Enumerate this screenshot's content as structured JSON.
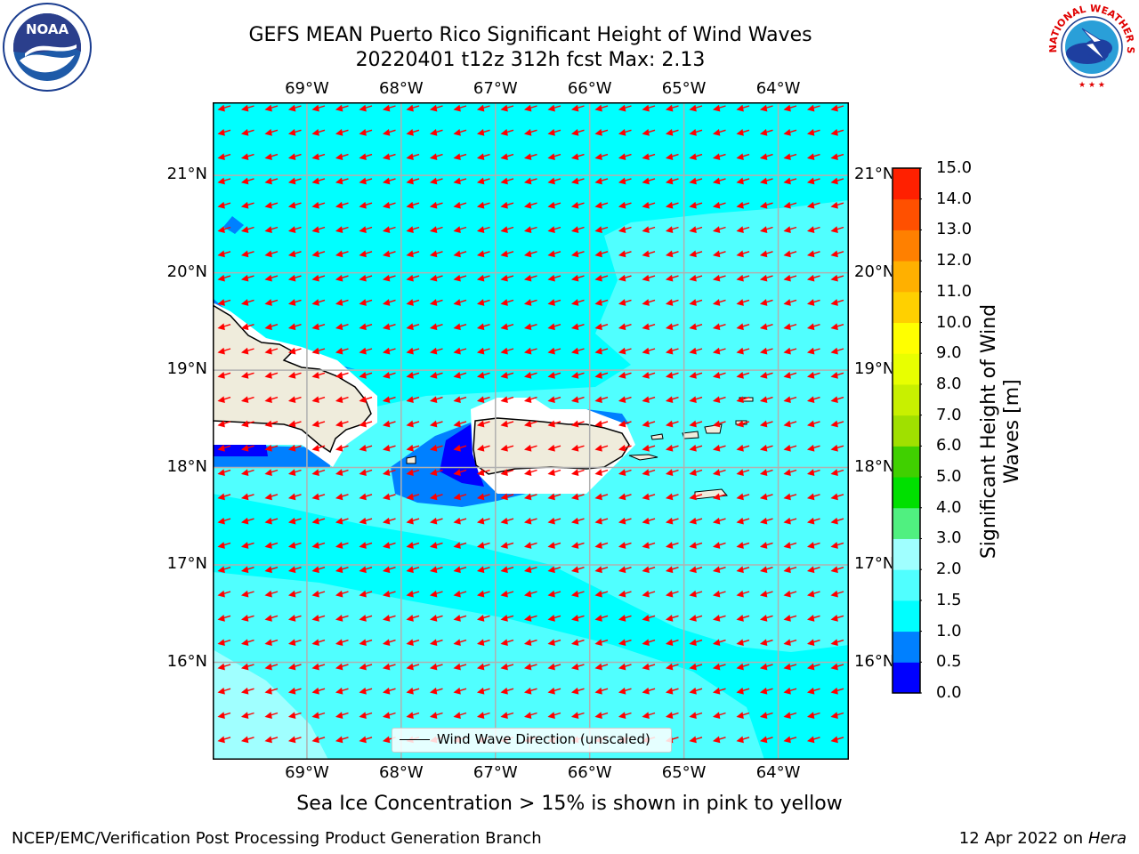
{
  "title_line1": "GEFS MEAN Puerto Rico Significant Height of Wind Waves",
  "title_line2": "20220401 t12z 312h fcst   Max: 2.13",
  "logos": {
    "left": {
      "icon": "noaa-logo",
      "text": "NOAA"
    },
    "right": {
      "icon": "nws-logo",
      "text": "NATIONAL WEATHER SERVICE"
    }
  },
  "map": {
    "lon_ticks": [
      "69°W",
      "68°W",
      "67°W",
      "66°W",
      "65°W",
      "64°W"
    ],
    "lat_ticks": [
      "21°N",
      "20°N",
      "19°N",
      "18°N",
      "17°N",
      "16°N"
    ],
    "extent": {
      "lon": [
        -70.0,
        -63.25
      ],
      "lat": [
        15.0,
        21.75
      ]
    },
    "vector_direction": "toward west-southwest",
    "legend_label": "Wind Wave Direction (unscaled)",
    "colors": {
      "land": "#efecdc",
      "vector": "#ff0000",
      "grid": "#b0b0b0"
    }
  },
  "colorbar": {
    "label": "Significant Height of Wind Waves [m]",
    "label_line1": "Significant Height of Wind",
    "label_line2": "Waves [m]",
    "ticks": [
      "0.0",
      "0.5",
      "1.0",
      "1.5",
      "2.0",
      "3.0",
      "4.0",
      "5.0",
      "6.0",
      "7.0",
      "8.0",
      "9.0",
      "10.0",
      "11.0",
      "12.0",
      "13.0",
      "14.0",
      "15.0"
    ],
    "levels": [
      0.0,
      0.5,
      1.0,
      1.5,
      2.0,
      2.5,
      3.0,
      3.5,
      4.0,
      4.5,
      5.0,
      5.5,
      6.0,
      6.5,
      7.0,
      7.5,
      8.0,
      8.5,
      9.0,
      9.5,
      10.0,
      10.5,
      11.0,
      11.5,
      12.0,
      12.5,
      13.0,
      13.5,
      14.0,
      14.5,
      15.0
    ],
    "colors": [
      "#0000ff",
      "#0080ff",
      "#00ffff",
      "#50ffff",
      "#a0ffff",
      "#c0ffff",
      "#50f080",
      "#00ff40",
      "#00e000",
      "#40e000",
      "#80e000",
      "#a0f000",
      "#c8ff00",
      "#e0ff00",
      "#f0ff00",
      "#ffff00",
      "#ffff00",
      "#ffee00",
      "#ffdd00",
      "#ffcc00",
      "#ffbb00",
      "#ffa500",
      "#ff9000",
      "#ff8000",
      "#ff6000",
      "#ff5000",
      "#ff3000",
      "#ff2000",
      "#ff1000",
      "#ff0000"
    ]
  },
  "subtitle": "Sea Ice Concentration > 15% is shown in pink to yellow",
  "footer_left": "NCEP/EMC/Verification Post Processing Product Generation Branch",
  "footer_right_prefix": "12 Apr 2022 on ",
  "footer_right_host": "Hera"
}
